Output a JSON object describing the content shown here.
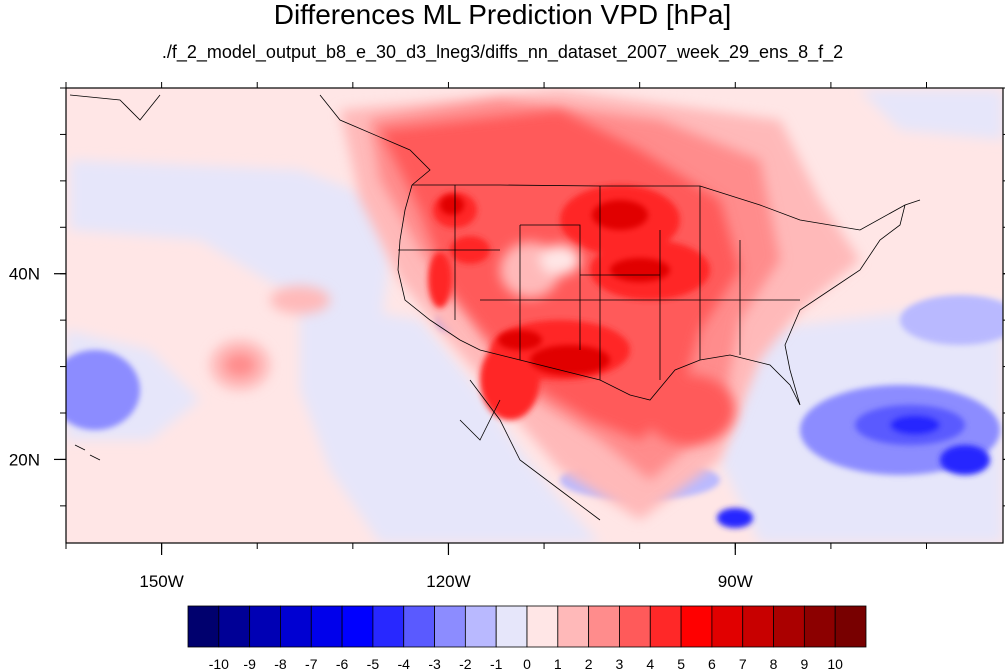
{
  "title": "Differences ML Prediction VPD [hPa]",
  "subtitle": "./f_2_model_output_b8_e_30_d3_lneg3/diffs_nn_dataset_2007_week_29_ens_8_f_2",
  "map": {
    "lon_range": [
      -160,
      -62
    ],
    "lat_range": [
      11,
      60
    ],
    "lon_ticks": [
      {
        "value": -150,
        "label": "150W"
      },
      {
        "value": -120,
        "label": "120W"
      },
      {
        "value": -90,
        "label": "90W"
      }
    ],
    "lat_ticks": [
      {
        "value": 40,
        "label": "40N"
      },
      {
        "value": 20,
        "label": "20N"
      }
    ]
  },
  "colorbar": {
    "labels": [
      "-10",
      "-9",
      "-8",
      "-7",
      "-6",
      "-5",
      "-4",
      "-3",
      "-2",
      "-1",
      "0",
      "1",
      "2",
      "3",
      "4",
      "5",
      "6",
      "7",
      "8",
      "9",
      "10"
    ],
    "colors": [
      "#00006e",
      "#000096",
      "#0000b4",
      "#0000d2",
      "#0000eb",
      "#0000ff",
      "#2828ff",
      "#5a5aff",
      "#8c8cff",
      "#b9b9ff",
      "#e6e6fa",
      "#ffe6e6",
      "#ffb9b9",
      "#ff8c8c",
      "#ff5a5a",
      "#ff2828",
      "#ff0000",
      "#e10000",
      "#c80000",
      "#aa0000",
      "#8c0000",
      "#780000"
    ]
  }
}
